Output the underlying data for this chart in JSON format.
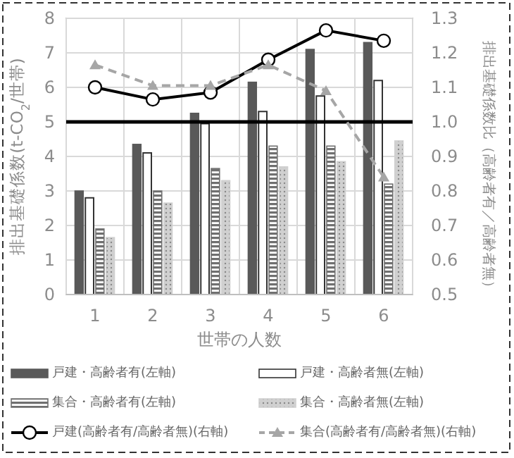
{
  "chart_data": {
    "type": "bar",
    "xlabel": "世帯の人数",
    "ylabel": "排出基礎係数(t-CO$_{2}$/世帯)",
    "y2label": "排出基礎係数比（高齢者有／高齢者無）",
    "categories": [
      "1",
      "2",
      "3",
      "4",
      "5",
      "6"
    ],
    "series": [
      {
        "name": "戸建・高齢者有(左軸)",
        "color": "#595959",
        "values": [
          3.0,
          4.35,
          5.25,
          6.15,
          7.1,
          7.3
        ]
      },
      {
        "name": "戸建・高齢者無(左軸)",
        "color": "#ffffff",
        "values": [
          2.8,
          4.1,
          4.95,
          5.3,
          5.75,
          6.2
        ]
      },
      {
        "name": "集合・高齢者有(左軸)",
        "color": "#707070",
        "values": [
          1.9,
          3.0,
          3.65,
          4.3,
          4.3,
          3.2
        ]
      },
      {
        "name": "集合・高齢者無(左軸)",
        "color": "#d0d0d0",
        "values": [
          1.65,
          2.65,
          3.3,
          3.7,
          3.85,
          4.45
        ]
      },
      {
        "name": "戸建(高齢者有/高齢者無)(右軸)",
        "type": "line",
        "axis": "y2",
        "color": "#000000",
        "marker": "circle",
        "line_style": "solid",
        "values": [
          1.1,
          1.065,
          1.085,
          1.18,
          1.265,
          1.235
        ]
      },
      {
        "name": "集合(高齢者有/高齢者無)(右軸)",
        "type": "line",
        "axis": "y2",
        "color": "#a6a6a6",
        "marker": "triangle",
        "line_style": "dashed",
        "values": [
          1.165,
          1.105,
          1.105,
          1.165,
          1.09,
          0.84
        ]
      }
    ],
    "ylim": [
      0,
      8
    ],
    "yticks": [
      0,
      1,
      2,
      3,
      4,
      5,
      6,
      7,
      8
    ],
    "y2lim": [
      0.5,
      1.3
    ],
    "y2ticks": [
      {
        "value": 0.5,
        "label": "0.5"
      },
      {
        "value": 0.6,
        "label": "0.6"
      },
      {
        "value": 0.7,
        "label": "0.7"
      },
      {
        "value": 0.8,
        "label": "0.8"
      },
      {
        "value": 0.9,
        "label": "0.9"
      },
      {
        "value": 1.0,
        "label": "1.0"
      },
      {
        "value": 1.1,
        "label": "1.1"
      },
      {
        "value": 1.2,
        "label": "1.2"
      },
      {
        "value": 1.3,
        "label": "1.3"
      }
    ],
    "ref_lines": [
      {
        "axis": "y2",
        "value": 1.0,
        "color": "#000000"
      }
    ],
    "grid": true,
    "legend": "bottom"
  }
}
